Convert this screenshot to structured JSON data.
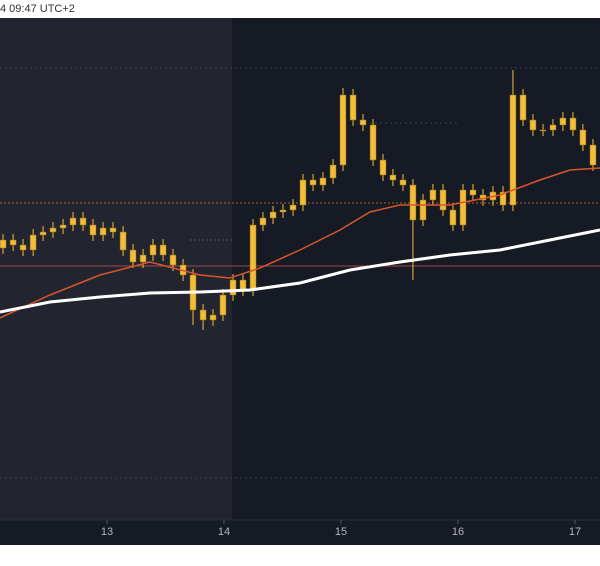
{
  "chart_data": {
    "type": "candlestick",
    "title": "4 09:47 UTC+2",
    "x": [
      12.111,
      12.197,
      12.282,
      12.368,
      12.453,
      12.538,
      12.624,
      12.709,
      12.795,
      12.88,
      12.966,
      13.051,
      13.137,
      13.222,
      13.308,
      13.393,
      13.479,
      13.564,
      13.65,
      13.735,
      13.821,
      13.906,
      13.991,
      14.077,
      14.162,
      14.248,
      14.333,
      14.419,
      14.504,
      14.59,
      14.675,
      14.761,
      14.846,
      14.932,
      15.017,
      15.103,
      15.188,
      15.274,
      15.359,
      15.444,
      15.53,
      15.615,
      15.701,
      15.786,
      15.872,
      15.957,
      16.043,
      16.128,
      16.214,
      16.299,
      16.385,
      16.47,
      16.556,
      16.641,
      16.727,
      16.812,
      16.897,
      16.983,
      17.068,
      17.154
    ],
    "open": [
      272,
      280,
      275,
      270,
      285,
      288,
      292,
      295,
      302,
      295,
      285,
      292,
      288,
      270,
      258,
      265,
      275,
      265,
      255,
      245,
      210,
      200,
      205,
      225,
      240,
      230,
      295,
      302,
      308,
      310,
      315,
      340,
      335,
      342,
      355,
      425,
      400,
      395,
      360,
      345,
      340,
      335,
      300,
      320,
      330,
      310,
      295,
      330,
      325,
      320,
      328,
      315,
      425,
      400,
      390,
      390,
      395,
      402,
      390,
      375
    ],
    "high": [
      286,
      286,
      281,
      291,
      294,
      298,
      301,
      308,
      308,
      301,
      298,
      298,
      294,
      276,
      271,
      281,
      281,
      271,
      261,
      251,
      216,
      211,
      231,
      246,
      246,
      301,
      308,
      314,
      316,
      321,
      346,
      346,
      348,
      361,
      432,
      431,
      406,
      401,
      366,
      351,
      346,
      341,
      326,
      336,
      336,
      316,
      336,
      336,
      331,
      334,
      334,
      450,
      431,
      406,
      396,
      401,
      408,
      408,
      396,
      381
    ],
    "low": [
      266,
      269,
      264,
      264,
      279,
      282,
      286,
      289,
      289,
      279,
      279,
      282,
      264,
      252,
      252,
      259,
      259,
      249,
      239,
      195,
      190,
      194,
      199,
      219,
      224,
      224,
      289,
      296,
      302,
      304,
      309,
      329,
      329,
      336,
      349,
      394,
      389,
      354,
      339,
      334,
      329,
      240,
      294,
      314,
      304,
      289,
      289,
      319,
      314,
      314,
      309,
      309,
      394,
      384,
      384,
      384,
      389,
      384,
      369,
      349
    ],
    "close": [
      280,
      275,
      270,
      285,
      288,
      292,
      295,
      302,
      295,
      285,
      292,
      288,
      270,
      258,
      265,
      275,
      265,
      255,
      245,
      210,
      200,
      205,
      225,
      240,
      230,
      295,
      302,
      308,
      310,
      315,
      340,
      335,
      342,
      355,
      425,
      400,
      395,
      360,
      345,
      340,
      335,
      300,
      320,
      330,
      310,
      295,
      330,
      325,
      320,
      328,
      315,
      425,
      400,
      390,
      390,
      395,
      402,
      390,
      375,
      355
    ],
    "color": "#f2bd3b",
    "lines": [
      {
        "color": "#d9552b",
        "x": [
          12.085,
          12.512,
          12.94,
          13.367,
          13.795,
          14.051,
          14.307,
          14.649,
          14.991,
          15.247,
          15.504,
          15.931,
          16.359,
          16.7,
          16.957,
          17.214
        ],
        "values": [
          202,
          225,
          245,
          258,
          245,
          242,
          252,
          270,
          290,
          308,
          315,
          315,
          325,
          340,
          350,
          352
        ]
      },
      {
        "color": "#ffffff",
        "x": [
          12.085,
          12.512,
          12.94,
          13.367,
          13.795,
          14.222,
          14.649,
          15.077,
          15.504,
          15.931,
          16.359,
          16.786,
          17.214
        ],
        "values": [
          208,
          218,
          223,
          227,
          228,
          230,
          237,
          250,
          258,
          265,
          270,
          280,
          290
        ]
      }
    ],
    "xlim": [
      12.085,
      17.214
    ],
    "xticks": [
      13,
      14,
      15,
      16,
      17
    ],
    "ylim": [
      0,
      502
    ]
  }
}
